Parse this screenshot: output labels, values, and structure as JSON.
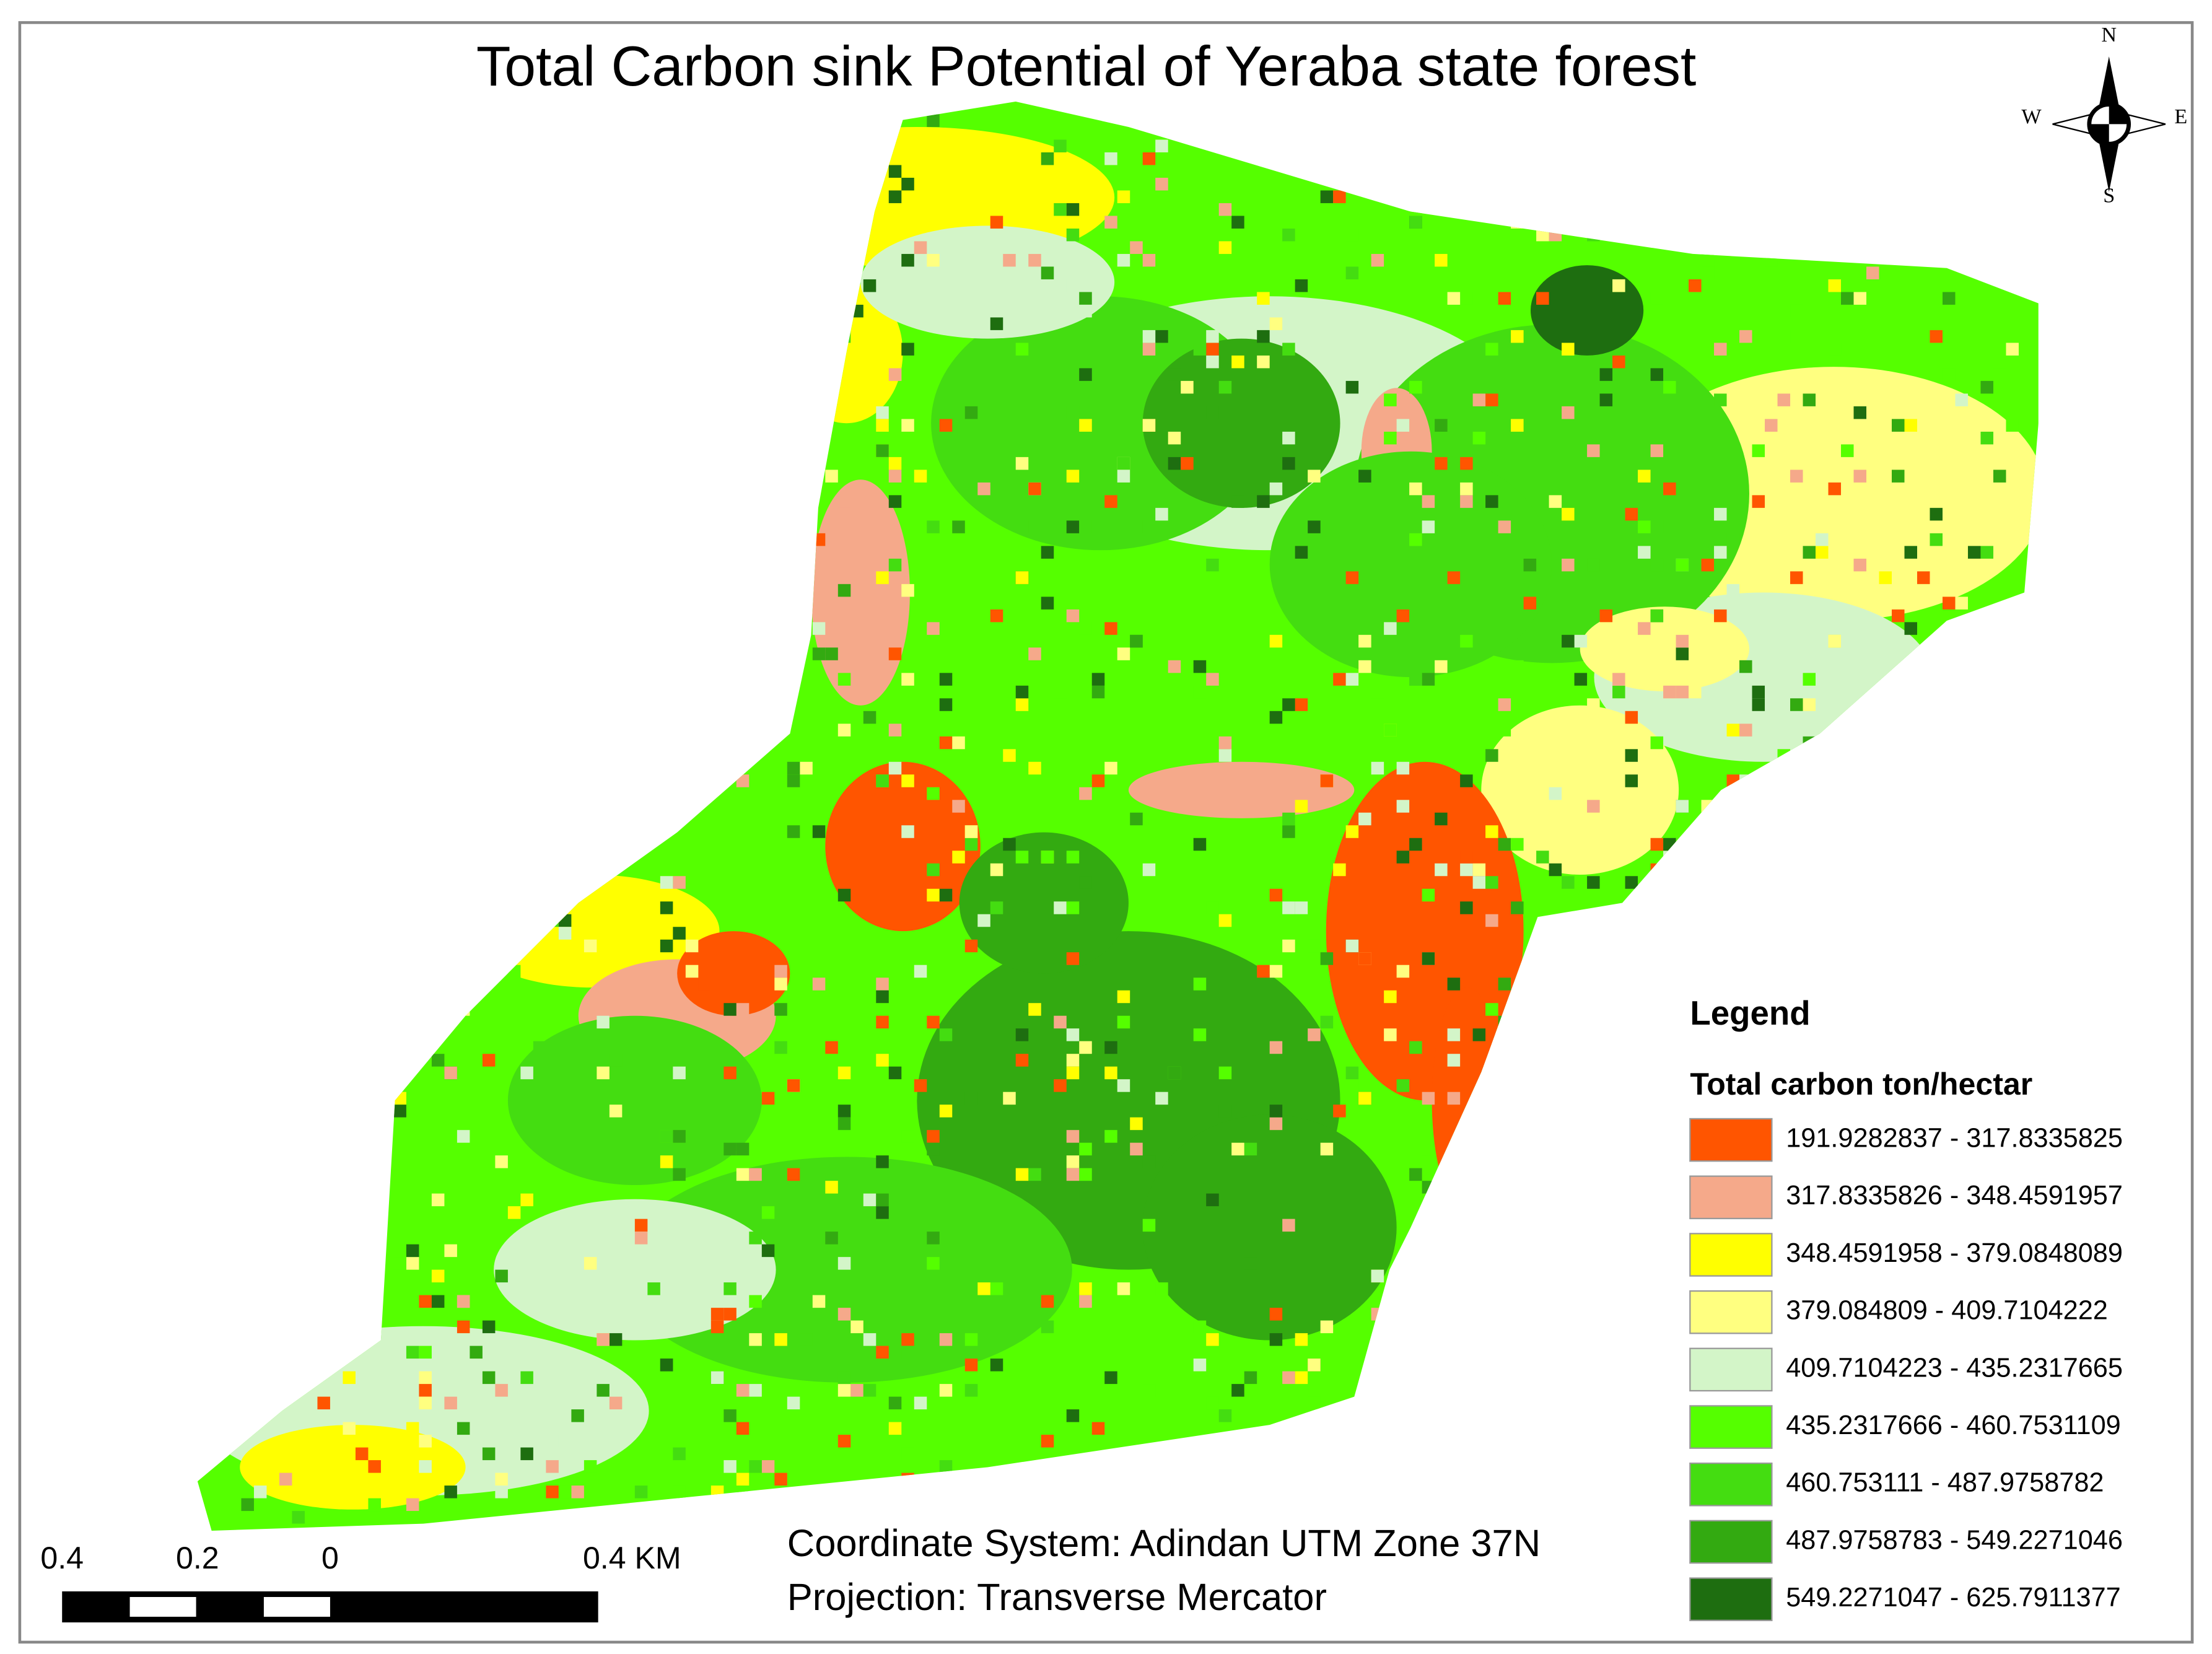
{
  "title": "Total Carbon sink Potential of Yeraba state forest",
  "compass": {
    "n": "N",
    "s": "S",
    "e": "E",
    "w": "W"
  },
  "legend": {
    "title": "Legend",
    "subtitle": "Total carbon ton/hectar",
    "items": [
      {
        "label": "191.9282837 - 317.8335825",
        "color": "#ff5500"
      },
      {
        "label": "317.8335826 - 348.4591957",
        "color": "#f5a98a"
      },
      {
        "label": "348.4591958 - 379.0848089",
        "color": "#ffff00"
      },
      {
        "label": "379.084809 - 409.7104222",
        "color": "#ffff80"
      },
      {
        "label": "409.7104223 - 435.2317665",
        "color": "#d3f5c8"
      },
      {
        "label": "435.2317666 - 460.7531109",
        "color": "#55ff00"
      },
      {
        "label": "460.753111 - 487.9758782",
        "color": "#44dd11"
      },
      {
        "label": "487.9758783 - 549.2271046",
        "color": "#33aa11"
      },
      {
        "label": "549.2271047 - 625.7911377",
        "color": "#1e6e10"
      }
    ]
  },
  "scale_bar": {
    "labels": [
      "0.4",
      "0.2",
      "0",
      "0.4 KM"
    ]
  },
  "coordinate_system": "Coordinate System: Adindan UTM Zone 37N",
  "projection": "Projection: Transverse Mercator"
}
